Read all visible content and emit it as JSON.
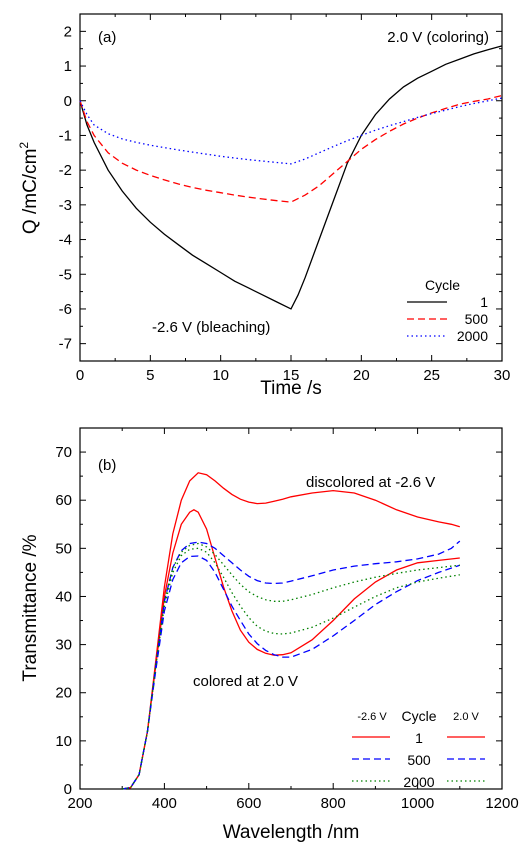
{
  "chart_data": [
    {
      "type": "line",
      "panel_label": "(a)",
      "xlabel": "Time /s",
      "ylabel": "Q /mC/cm",
      "ylabel_superscript": "2",
      "xlim": [
        0,
        30
      ],
      "ylim": [
        -7.5,
        2.5
      ],
      "xticks": [
        "0",
        "5",
        "10",
        "15",
        "20",
        "25",
        "30"
      ],
      "yticks": [
        "2",
        "1",
        "0",
        "-1",
        "-2",
        "-3",
        "-4",
        "-5",
        "-6",
        "-7"
      ],
      "xtick_values": [
        0,
        5,
        10,
        15,
        20,
        25,
        30
      ],
      "ytick_values": [
        2,
        1,
        0,
        -1,
        -2,
        -3,
        -4,
        -5,
        -6,
        -7
      ],
      "annotations": {
        "coloring": "2.0 V (coloring)",
        "bleaching": "-2.6 V (bleaching)"
      },
      "legend": {
        "title": "Cycle",
        "placement": "lower-right"
      },
      "series": [
        {
          "name": "1",
          "color": "#000000",
          "dash": "solid",
          "x": [
            0,
            0.5,
            1,
            2,
            3,
            4,
            5,
            6,
            7,
            8,
            9,
            10,
            11,
            12,
            13,
            14,
            15,
            15.5,
            16,
            17,
            18,
            19,
            20,
            21,
            22,
            23,
            24,
            25,
            26,
            27,
            28,
            29,
            30
          ],
          "y": [
            0,
            -0.7,
            -1.2,
            -2.0,
            -2.6,
            -3.1,
            -3.5,
            -3.85,
            -4.15,
            -4.45,
            -4.7,
            -4.95,
            -5.2,
            -5.4,
            -5.6,
            -5.8,
            -6.0,
            -5.6,
            -5.1,
            -4.0,
            -2.9,
            -1.8,
            -1.0,
            -0.4,
            0.05,
            0.4,
            0.65,
            0.85,
            1.05,
            1.2,
            1.35,
            1.47,
            1.58
          ]
        },
        {
          "name": "500",
          "color": "#ff0000",
          "dash": "dashed",
          "x": [
            0,
            0.5,
            1,
            2,
            3,
            4,
            5,
            6,
            7,
            8,
            9,
            10,
            11,
            12,
            13,
            14,
            15,
            16,
            17,
            18,
            19,
            20,
            21,
            22,
            23,
            24,
            25,
            26,
            27,
            28,
            29,
            30
          ],
          "y": [
            0,
            -0.6,
            -1.0,
            -1.5,
            -1.8,
            -2.0,
            -2.15,
            -2.28,
            -2.4,
            -2.5,
            -2.58,
            -2.65,
            -2.72,
            -2.78,
            -2.83,
            -2.88,
            -2.92,
            -2.72,
            -2.45,
            -2.1,
            -1.75,
            -1.4,
            -1.12,
            -0.88,
            -0.67,
            -0.5,
            -0.35,
            -0.22,
            -0.1,
            -0.02,
            0.05,
            0.15
          ]
        },
        {
          "name": "2000",
          "color": "#0000ff",
          "dash": "dotted",
          "x": [
            0,
            0.5,
            1,
            2,
            3,
            4,
            5,
            6,
            7,
            8,
            9,
            10,
            11,
            12,
            13,
            14,
            15,
            16,
            17,
            18,
            19,
            20,
            21,
            22,
            23,
            24,
            25,
            26,
            27,
            28,
            29,
            30
          ],
          "y": [
            0,
            -0.4,
            -0.7,
            -0.95,
            -1.1,
            -1.2,
            -1.28,
            -1.35,
            -1.42,
            -1.48,
            -1.54,
            -1.6,
            -1.65,
            -1.7,
            -1.74,
            -1.78,
            -1.82,
            -1.68,
            -1.5,
            -1.32,
            -1.15,
            -1.0,
            -0.85,
            -0.72,
            -0.6,
            -0.48,
            -0.37,
            -0.27,
            -0.17,
            -0.08,
            0.0,
            0.08
          ]
        }
      ]
    },
    {
      "type": "line",
      "panel_label": "(b)",
      "xlabel": "Wavelength /nm",
      "ylabel": "Transmittance /%",
      "xlim": [
        200,
        1200
      ],
      "ylim": [
        0,
        75
      ],
      "xticks": [
        "200",
        "400",
        "600",
        "800",
        "1000",
        "1200"
      ],
      "yticks": [
        "0",
        "10",
        "20",
        "30",
        "40",
        "50",
        "60",
        "70"
      ],
      "xtick_values": [
        200,
        400,
        600,
        800,
        1000,
        1200
      ],
      "ytick_values": [
        0,
        10,
        20,
        30,
        40,
        50,
        60,
        70
      ],
      "annotations": {
        "discolored": "discolored at -2.6 V",
        "colored": "colored at 2.0 V"
      },
      "legend": {
        "title": "Cycle",
        "left_header": "-2.6 V",
        "right_header": "2.0 V",
        "placement": "lower-right"
      },
      "series": [
        {
          "name": "1",
          "state": "-2.6 V",
          "color": "#ff0000",
          "dash": "solid",
          "x": [
            300,
            320,
            340,
            360,
            380,
            400,
            420,
            440,
            460,
            480,
            500,
            520,
            540,
            560,
            580,
            600,
            620,
            640,
            660,
            680,
            700,
            750,
            800,
            850,
            900,
            950,
            1000,
            1050,
            1080,
            1100
          ],
          "y": [
            0,
            0.3,
            3,
            12,
            27,
            42,
            53,
            60,
            64,
            65.7,
            65.3,
            64,
            62.5,
            61.2,
            60.2,
            59.6,
            59.3,
            59.4,
            59.8,
            60.2,
            60.7,
            61.5,
            62,
            61.5,
            60,
            58,
            56.5,
            55.5,
            55,
            54.5
          ]
        },
        {
          "name": "1",
          "state": "2.0 V",
          "color": "#ff0000",
          "dash": "solid",
          "x": [
            300,
            320,
            340,
            360,
            380,
            400,
            420,
            440,
            460,
            470,
            480,
            500,
            520,
            540,
            560,
            580,
            600,
            620,
            640,
            660,
            680,
            700,
            750,
            800,
            850,
            900,
            950,
            1000,
            1050,
            1100
          ],
          "y": [
            0,
            0.3,
            3,
            12,
            26,
            40,
            49,
            55,
            57.5,
            58,
            57.5,
            54,
            48,
            42,
            37,
            33,
            30.5,
            29,
            28.2,
            27.8,
            27.9,
            28.3,
            31,
            35,
            39.5,
            43,
            45.5,
            47,
            47.5,
            48
          ]
        },
        {
          "name": "500",
          "state": "-2.6 V",
          "color": "#0000ff",
          "dash": "dashed",
          "x": [
            300,
            320,
            340,
            360,
            380,
            400,
            420,
            440,
            460,
            480,
            500,
            520,
            540,
            560,
            580,
            600,
            620,
            640,
            660,
            680,
            700,
            750,
            800,
            850,
            900,
            950,
            1000,
            1050,
            1080,
            1100
          ],
          "y": [
            0,
            0.3,
            3,
            12,
            26,
            39,
            46,
            49.5,
            51,
            51.3,
            51,
            50,
            48.5,
            47,
            45.5,
            44.2,
            43.3,
            42.8,
            42.7,
            42.8,
            43.2,
            44.3,
            45.5,
            46.3,
            46.8,
            47.2,
            47.8,
            48.8,
            50,
            51.5
          ]
        },
        {
          "name": "500",
          "state": "2.0 V",
          "color": "#0000ff",
          "dash": "dashed",
          "x": [
            300,
            320,
            340,
            360,
            380,
            400,
            420,
            440,
            460,
            480,
            500,
            520,
            540,
            560,
            580,
            600,
            620,
            640,
            660,
            680,
            700,
            750,
            800,
            850,
            900,
            950,
            1000,
            1050,
            1100
          ],
          "y": [
            0,
            0.3,
            3,
            12,
            25,
            37,
            43.5,
            47,
            48.3,
            48.4,
            47.5,
            45,
            41.5,
            38,
            35,
            32.2,
            30.2,
            28.8,
            27.9,
            27.4,
            27.4,
            29,
            31.8,
            35,
            38.3,
            41,
            43.3,
            45,
            46.5
          ]
        },
        {
          "name": "2000",
          "state": "-2.6 V",
          "color": "#008000",
          "dash": "dotted",
          "x": [
            300,
            320,
            340,
            360,
            380,
            400,
            420,
            440,
            460,
            480,
            500,
            520,
            540,
            560,
            580,
            600,
            620,
            640,
            660,
            680,
            700,
            750,
            800,
            850,
            900,
            950,
            1000,
            1050,
            1100
          ],
          "y": [
            0,
            0.3,
            3,
            12,
            26,
            39,
            46,
            49.2,
            50.6,
            51,
            50.3,
            48.7,
            46.6,
            44.5,
            42.5,
            41,
            40,
            39.3,
            39,
            39,
            39.3,
            40.4,
            41.8,
            43,
            44,
            44.8,
            45.5,
            46,
            46.5
          ]
        },
        {
          "name": "2000",
          "state": "2.0 V",
          "color": "#008000",
          "dash": "dotted",
          "x": [
            300,
            320,
            340,
            360,
            380,
            400,
            420,
            440,
            460,
            480,
            500,
            520,
            540,
            560,
            580,
            600,
            620,
            640,
            660,
            680,
            700,
            750,
            800,
            850,
            900,
            950,
            1000,
            1050,
            1100
          ],
          "y": [
            0,
            0.3,
            3,
            12,
            26,
            38,
            45,
            48.5,
            49.8,
            50,
            49.2,
            47,
            44,
            40.8,
            38,
            35.6,
            33.8,
            32.8,
            32.3,
            32.2,
            32.4,
            33.6,
            35.5,
            37.8,
            40,
            41.8,
            43,
            43.8,
            44.5
          ]
        }
      ]
    }
  ]
}
